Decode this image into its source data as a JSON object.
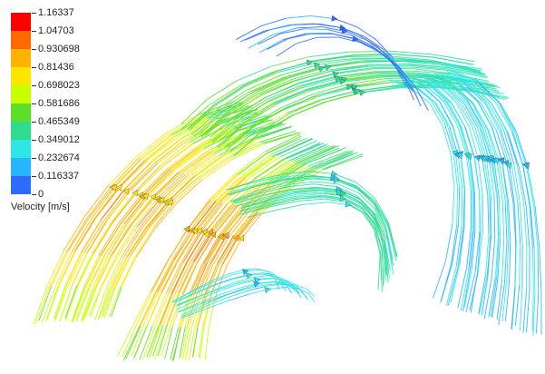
{
  "legend": {
    "title": "Velocity [m/s]",
    "ticks": [
      "1.16337",
      "1.04703",
      "0.930698",
      "0.81436",
      "0.698023",
      "0.581686",
      "0.465349",
      "0.349012",
      "0.232674",
      "0.116337",
      "0"
    ],
    "colors": [
      "#ff0000",
      "#ff6a00",
      "#ffb300",
      "#ffe600",
      "#c8ff00",
      "#5cdf2a",
      "#2fdc8f",
      "#2de6e6",
      "#25b6ff",
      "#2f6bff",
      "#0000ff"
    ]
  }
}
